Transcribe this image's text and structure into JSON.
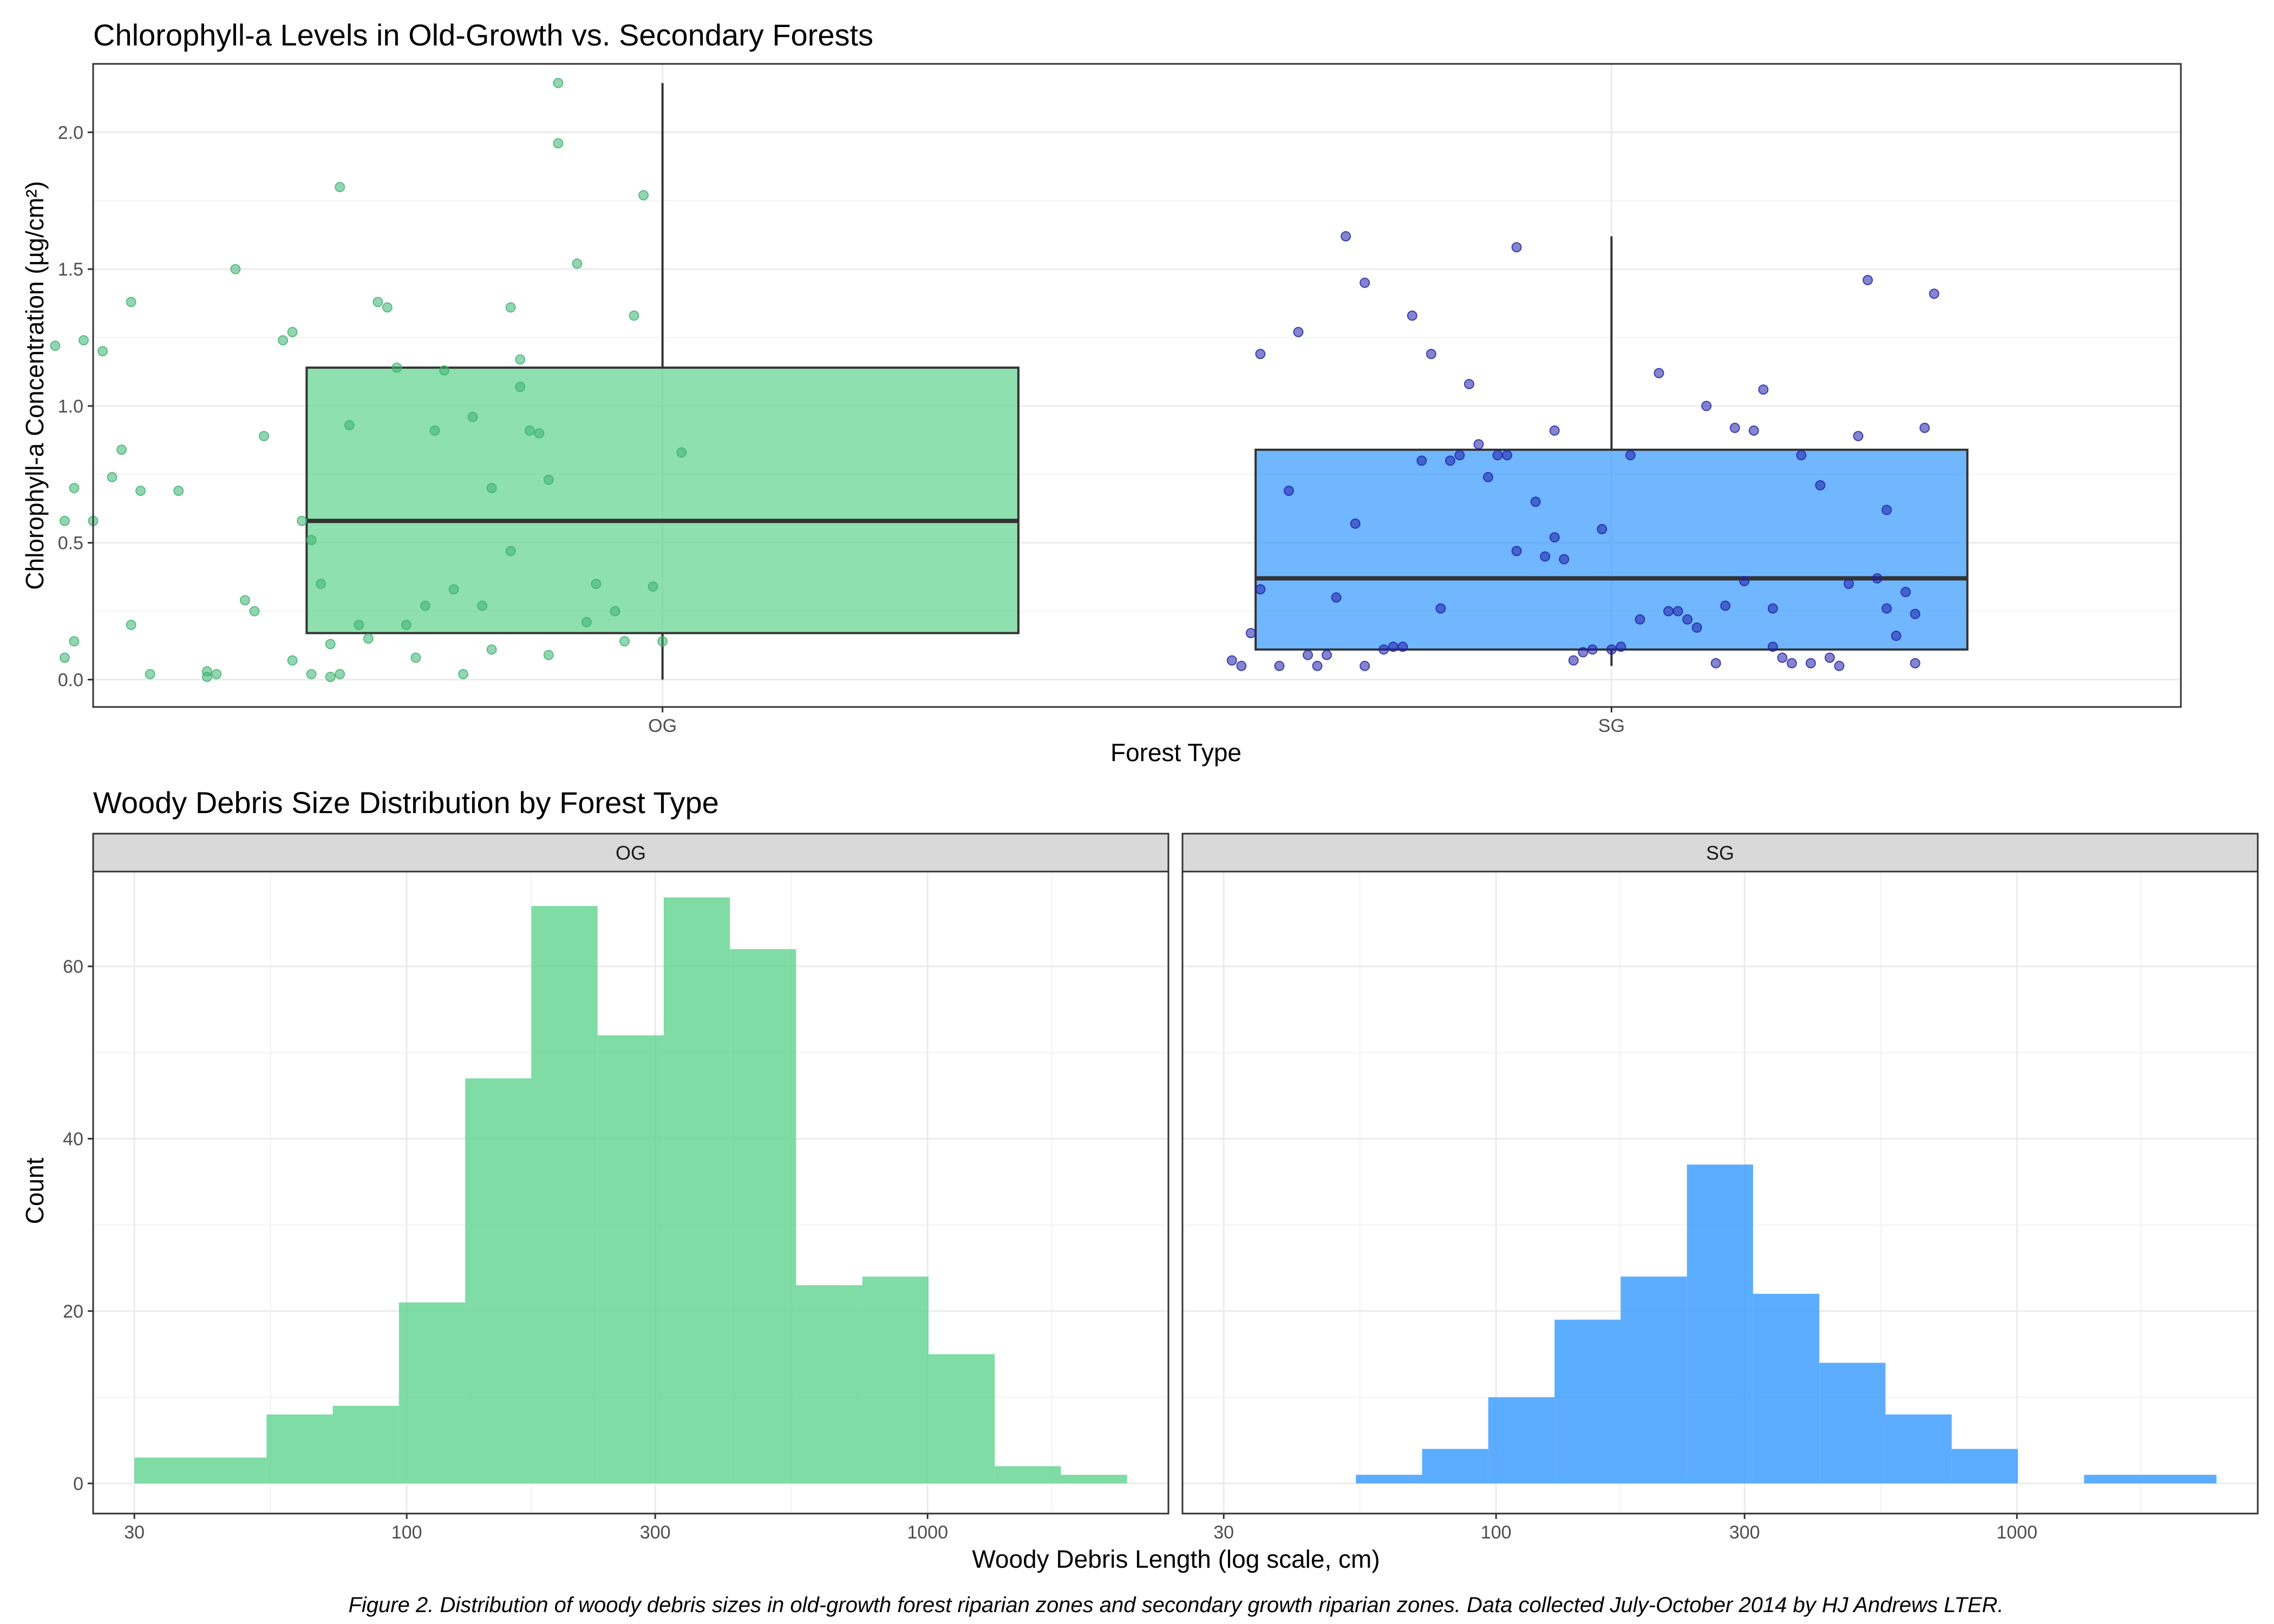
{
  "colors": {
    "og_fill": "#5FD38D",
    "sg_fill": "#3399FF",
    "og_point": "#3CB371",
    "sg_point": "#1F1FA8",
    "strip_bg": "#D9D9D9"
  },
  "caption": "Figure 2. Distribution of woody debris sizes in old-growth forest riparian zones and secondary growth riparian zones. Data collected July-October 2014 by HJ Andrews LTER.",
  "chart_data": [
    {
      "type": "box",
      "title": "Chlorophyll-a Levels in Old-Growth vs. Secondary Forests",
      "xlabel": "Forest Type",
      "ylabel": "Chlorophyll-a Concentration (µg/cm²)",
      "ylim": [
        -0.1,
        2.25
      ],
      "yticks": [
        0.0,
        0.5,
        1.0,
        1.5,
        2.0
      ],
      "ytick_labels": [
        "0.0",
        "0.5",
        "1.0",
        "1.5",
        "2.0"
      ],
      "categories": [
        "OG",
        "SG"
      ],
      "boxes": [
        {
          "group": "OG",
          "min": 0.0,
          "q1": 0.17,
          "median": 0.58,
          "q3": 1.14,
          "max": 2.18
        },
        {
          "group": "SG",
          "min": 0.05,
          "q1": 0.11,
          "median": 0.37,
          "q3": 0.84,
          "max": 1.62
        }
      ],
      "jitter_points": {
        "OG": [
          [
            0.36,
            1.22
          ],
          [
            0.39,
            1.24
          ],
          [
            0.41,
            1.2
          ],
          [
            0.44,
            1.38
          ],
          [
            0.42,
            0.74
          ],
          [
            0.38,
            0.7
          ],
          [
            0.43,
            0.84
          ],
          [
            0.45,
            0.69
          ],
          [
            0.49,
            0.69
          ],
          [
            0.37,
            0.58
          ],
          [
            0.4,
            0.58
          ],
          [
            0.44,
            0.2
          ],
          [
            0.38,
            0.14
          ],
          [
            0.37,
            0.08
          ],
          [
            0.46,
            0.02
          ],
          [
            0.52,
            0.03
          ],
          [
            0.52,
            0.01
          ],
          [
            0.53,
            0.02
          ],
          [
            0.56,
            0.29
          ],
          [
            0.57,
            0.25
          ],
          [
            0.55,
            1.5
          ],
          [
            0.58,
            0.89
          ],
          [
            0.6,
            1.24
          ],
          [
            0.61,
            1.27
          ],
          [
            0.62,
            0.58
          ],
          [
            0.63,
            0.51
          ],
          [
            0.64,
            0.35
          ],
          [
            0.61,
            0.07
          ],
          [
            0.63,
            0.02
          ],
          [
            0.65,
            0.01
          ],
          [
            0.66,
            0.02
          ],
          [
            0.65,
            0.13
          ],
          [
            0.68,
            0.2
          ],
          [
            0.69,
            0.15
          ],
          [
            0.67,
            0.93
          ],
          [
            0.7,
            1.38
          ],
          [
            0.71,
            1.36
          ],
          [
            0.72,
            1.14
          ],
          [
            0.73,
            0.2
          ],
          [
            0.74,
            0.08
          ],
          [
            0.75,
            0.27
          ],
          [
            0.76,
            0.91
          ],
          [
            0.77,
            1.13
          ],
          [
            0.78,
            0.33
          ],
          [
            0.79,
            0.02
          ],
          [
            0.8,
            0.96
          ],
          [
            0.81,
            0.27
          ],
          [
            0.82,
            0.7
          ],
          [
            0.82,
            0.11
          ],
          [
            0.84,
            0.47
          ],
          [
            0.85,
            1.07
          ],
          [
            0.85,
            1.17
          ],
          [
            0.84,
            1.36
          ],
          [
            0.86,
            0.91
          ],
          [
            0.87,
            0.9
          ],
          [
            0.88,
            0.73
          ],
          [
            0.88,
            0.09
          ],
          [
            0.89,
            1.96
          ],
          [
            0.89,
            2.18
          ],
          [
            0.91,
            1.52
          ],
          [
            0.92,
            0.21
          ],
          [
            0.93,
            0.35
          ],
          [
            0.95,
            0.25
          ],
          [
            0.96,
            0.14
          ],
          [
            0.97,
            1.33
          ],
          [
            0.98,
            1.77
          ],
          [
            0.99,
            0.34
          ],
          [
            1.0,
            0.14
          ],
          [
            1.02,
            0.83
          ],
          [
            0.66,
            1.8
          ]
        ],
        "SG": [
          [
            0.6,
            0.07
          ],
          [
            0.61,
            0.05
          ],
          [
            0.62,
            0.17
          ],
          [
            0.63,
            0.33
          ],
          [
            0.63,
            1.19
          ],
          [
            0.65,
            0.05
          ],
          [
            0.66,
            0.69
          ],
          [
            0.67,
            1.27
          ],
          [
            0.68,
            0.09
          ],
          [
            0.69,
            0.05
          ],
          [
            0.7,
            0.09
          ],
          [
            0.71,
            0.3
          ],
          [
            0.72,
            1.62
          ],
          [
            0.74,
            1.45
          ],
          [
            0.73,
            0.57
          ],
          [
            0.74,
            0.05
          ],
          [
            0.76,
            0.11
          ],
          [
            0.77,
            0.12
          ],
          [
            0.78,
            0.12
          ],
          [
            0.79,
            1.33
          ],
          [
            0.8,
            0.8
          ],
          [
            0.81,
            1.19
          ],
          [
            0.82,
            0.26
          ],
          [
            0.83,
            0.8
          ],
          [
            0.84,
            0.82
          ],
          [
            0.85,
            1.08
          ],
          [
            0.86,
            0.86
          ],
          [
            0.87,
            0.74
          ],
          [
            0.88,
            0.82
          ],
          [
            0.89,
            0.82
          ],
          [
            0.9,
            0.47
          ],
          [
            0.9,
            1.58
          ],
          [
            0.92,
            0.65
          ],
          [
            0.93,
            0.45
          ],
          [
            0.94,
            0.91
          ],
          [
            0.94,
            0.52
          ],
          [
            0.95,
            0.44
          ],
          [
            0.96,
            0.07
          ],
          [
            0.97,
            0.1
          ],
          [
            0.98,
            0.11
          ],
          [
            0.99,
            0.55
          ],
          [
            1.0,
            0.11
          ],
          [
            1.01,
            0.12
          ],
          [
            1.02,
            0.82
          ],
          [
            1.03,
            0.22
          ],
          [
            1.05,
            1.12
          ],
          [
            1.06,
            0.25
          ],
          [
            1.07,
            0.25
          ],
          [
            1.08,
            0.22
          ],
          [
            1.09,
            0.19
          ],
          [
            1.1,
            1.0
          ],
          [
            1.11,
            0.06
          ],
          [
            1.12,
            0.27
          ],
          [
            1.13,
            0.92
          ],
          [
            1.14,
            0.36
          ],
          [
            1.15,
            0.91
          ],
          [
            1.16,
            1.06
          ],
          [
            1.17,
            0.26
          ],
          [
            1.17,
            0.12
          ],
          [
            1.18,
            0.08
          ],
          [
            1.19,
            0.06
          ],
          [
            1.2,
            0.82
          ],
          [
            1.21,
            0.06
          ],
          [
            1.22,
            0.71
          ],
          [
            1.23,
            0.08
          ],
          [
            1.24,
            0.05
          ],
          [
            1.25,
            0.35
          ],
          [
            1.26,
            0.89
          ],
          [
            1.27,
            1.46
          ],
          [
            1.28,
            0.37
          ],
          [
            1.29,
            0.26
          ],
          [
            1.3,
            0.16
          ],
          [
            1.29,
            0.62
          ],
          [
            1.31,
            0.32
          ],
          [
            1.32,
            0.24
          ],
          [
            1.32,
            0.06
          ],
          [
            1.33,
            0.92
          ],
          [
            1.34,
            1.41
          ]
        ]
      }
    },
    {
      "type": "histogram",
      "title": "Woody Debris Size Distribution by Forest Type",
      "xlabel": "Woody Debris Length (log scale, cm)",
      "ylabel": "Count",
      "xscale": "log10",
      "xlim": [
        25,
        2900
      ],
      "ylim": [
        -3.5,
        71
      ],
      "xticks": [
        30,
        100,
        300,
        1000
      ],
      "xtick_labels": [
        "30",
        "100",
        "300",
        "1000"
      ],
      "yticks": [
        0,
        20,
        40,
        60
      ],
      "ytick_labels": [
        "0",
        "20",
        "40",
        "60"
      ],
      "bin_edges": [
        30,
        40.2,
        53.8,
        72.1,
        96.6,
        129.5,
        173.5,
        232.5,
        311.5,
        417.4,
        559.3,
        749.5,
        1004.3,
        1345.7,
        1803.3,
        2416.4
      ],
      "series": [
        {
          "name": "OG",
          "counts": [
            3,
            3,
            8,
            9,
            21,
            47,
            67,
            52,
            68,
            62,
            23,
            24,
            15,
            2,
            1
          ]
        },
        {
          "name": "SG",
          "counts": [
            0,
            0,
            1,
            4,
            10,
            19,
            24,
            37,
            22,
            14,
            8,
            4,
            0,
            1,
            1
          ]
        }
      ]
    }
  ]
}
